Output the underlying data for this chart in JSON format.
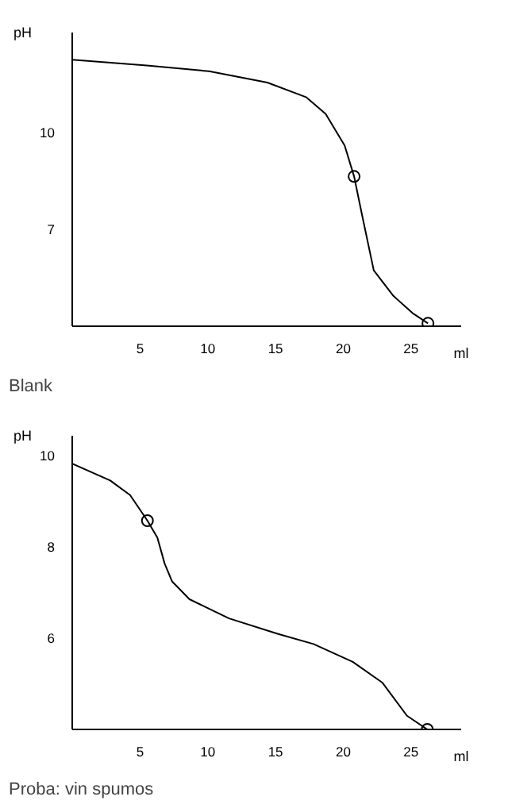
{
  "chart_data": [
    {
      "type": "line",
      "xlabel": "ml",
      "ylabel": "pH",
      "annotations": [
        "Blank"
      ],
      "xlim": [
        0,
        28.7
      ],
      "ylim": [
        4,
        13.1
      ],
      "xticks": [
        5,
        10,
        15,
        20,
        25
      ],
      "yticks": [
        7,
        10
      ],
      "grid": false,
      "series": [
        {
          "color": "#000000",
          "x": [
            0,
            5.5,
            10.1,
            14.4,
            17.25,
            18.7,
            20.1,
            20.8,
            21.36,
            22.25,
            23.7,
            25.1,
            26.25
          ],
          "values": [
            12.26,
            12.08,
            11.9,
            11.55,
            11.1,
            10.58,
            9.6,
            8.64,
            7.5,
            5.73,
            4.94,
            4.41,
            4.09
          ]
        },
        {
          "type": "scatter",
          "marker": "circle",
          "color": "#000000",
          "x": [
            20.8,
            26.25
          ],
          "values": [
            8.64,
            4.09
          ]
        }
      ]
    },
    {
      "type": "line",
      "xlabel": "ml",
      "ylabel": "pH",
      "annotations": [
        "Proba: vin spumos"
      ],
      "xlim": [
        0,
        28.7
      ],
      "ylim": [
        4,
        10.43
      ],
      "xticks": [
        5,
        10,
        15,
        20,
        25
      ],
      "yticks": [
        6,
        8,
        10
      ],
      "grid": false,
      "series": [
        {
          "color": "#000000",
          "x": [
            0,
            2.8,
            4.27,
            5.55,
            6.28,
            6.82,
            7.37,
            8.65,
            11.57,
            15.2,
            17.8,
            20.7,
            22.9,
            24.7,
            26.2
          ],
          "values": [
            9.82,
            9.45,
            9.13,
            8.57,
            8.2,
            7.63,
            7.24,
            6.85,
            6.43,
            6.09,
            5.87,
            5.48,
            5.02,
            4.3,
            4.0
          ]
        },
        {
          "type": "scatter",
          "marker": "circle",
          "color": "#000000",
          "x": [
            5.55,
            26.2
          ],
          "values": [
            8.57,
            4.0
          ]
        }
      ]
    }
  ]
}
